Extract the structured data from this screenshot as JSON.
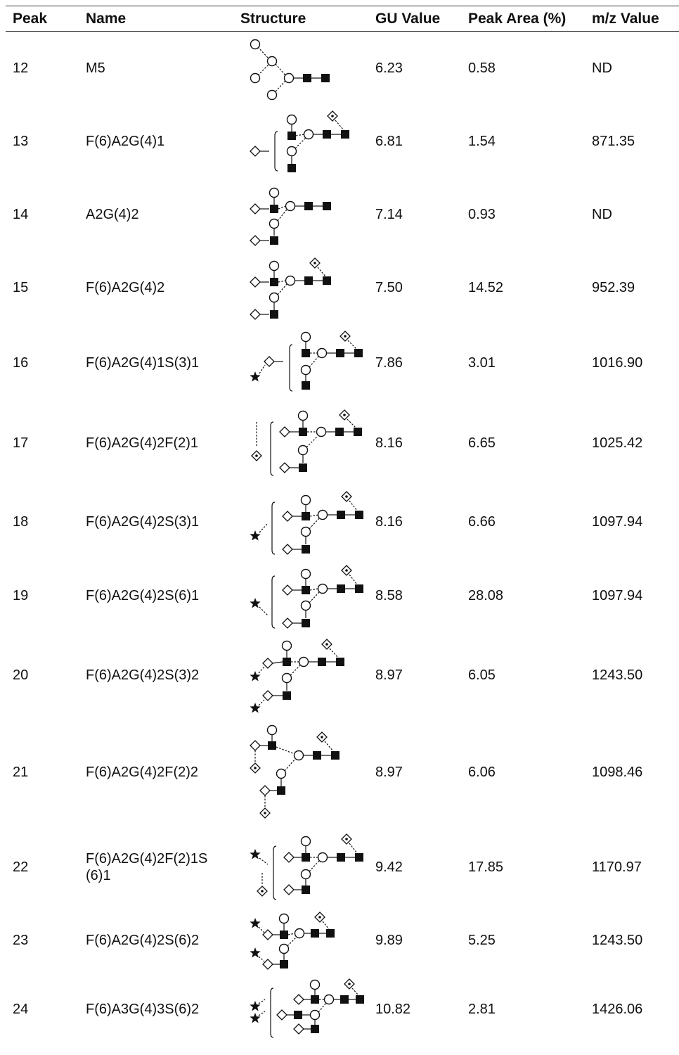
{
  "headers": {
    "peak": "Peak",
    "name": "Name",
    "structure": "Structure",
    "gu": "GU Value",
    "area": "Peak Area (%)",
    "mz": "m/z Value"
  },
  "rows": [
    {
      "peak": "12",
      "name": "M5",
      "gu": "6.23",
      "area": "0.58",
      "mz": "ND"
    },
    {
      "peak": "13",
      "name": "F(6)A2G(4)1",
      "gu": "6.81",
      "area": "1.54",
      "mz": "871.35"
    },
    {
      "peak": "14",
      "name": "A2G(4)2",
      "gu": "7.14",
      "area": "0.93",
      "mz": "ND"
    },
    {
      "peak": "15",
      "name": "F(6)A2G(4)2",
      "gu": "7.50",
      "area": "14.52",
      "mz": "952.39"
    },
    {
      "peak": "16",
      "name": "F(6)A2G(4)1S(3)1",
      "gu": "7.86",
      "area": "3.01",
      "mz": "1016.90"
    },
    {
      "peak": "17",
      "name": "F(6)A2G(4)2F(2)1",
      "gu": "8.16",
      "area": "6.65",
      "mz": "1025.42"
    },
    {
      "peak": "18",
      "name": "F(6)A2G(4)2S(3)1",
      "gu": "8.16",
      "area": "6.66",
      "mz": "1097.94"
    },
    {
      "peak": "19",
      "name": "F(6)A2G(4)2S(6)1",
      "gu": "8.58",
      "area": "28.08",
      "mz": "1097.94"
    },
    {
      "peak": "20",
      "name": "F(6)A2G(4)2S(3)2",
      "gu": "8.97",
      "area": "6.05",
      "mz": "1243.50"
    },
    {
      "peak": "21",
      "name": "F(6)A2G(4)2F(2)2",
      "gu": "8.97",
      "area": "6.06",
      "mz": "1098.46"
    },
    {
      "peak": "22",
      "name": "F(6)A2G(4)2F(2)1S (6)1",
      "gu": "9.42",
      "area": "17.85",
      "mz": "1170.97"
    },
    {
      "peak": "23",
      "name": "F(6)A2G(4)2S(6)2",
      "gu": "9.89",
      "area": "5.25",
      "mz": "1243.50"
    },
    {
      "peak": "24",
      "name": "F(6)A3G(4)3S(6)2",
      "gu": "10.82",
      "area": "2.81",
      "mz": "1426.06"
    }
  ],
  "symbols": {
    "square": "filled-square (GlcNAc)",
    "circle": "open-circle (Man/Gal)",
    "diamond": "open-diamond",
    "dotted_diamond": "dotted-diamond (Fuc)",
    "star": "filled-star (sialic acid)"
  }
}
